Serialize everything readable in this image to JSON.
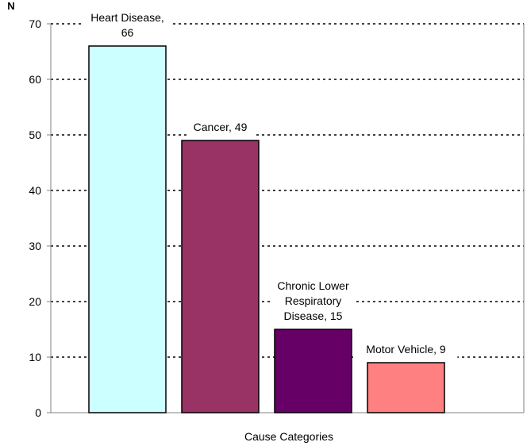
{
  "chart_data": {
    "type": "bar",
    "title": "",
    "xlabel": "Cause Categories",
    "ylabel": "N",
    "ylim": [
      0,
      70
    ],
    "yticks": [
      0,
      10,
      20,
      30,
      40,
      50,
      60,
      70
    ],
    "grid": true,
    "legend": "none",
    "categories": [
      "Heart Disease",
      "Cancer",
      "Chronic Lower Respiratory Disease",
      "Motor Vehicle"
    ],
    "values": [
      66,
      49,
      15,
      9
    ],
    "data_labels": [
      [
        "Heart Disease,",
        "66"
      ],
      [
        "Cancer, 49"
      ],
      [
        "Chronic Lower",
        "Respiratory",
        "Disease, 15"
      ],
      [
        "Motor Vehicle, 9"
      ]
    ],
    "colors": [
      "#ccffff",
      "#993366",
      "#660066",
      "#ff8080"
    ]
  }
}
